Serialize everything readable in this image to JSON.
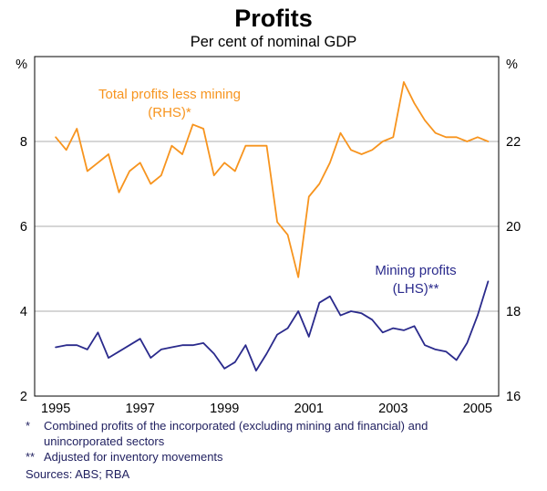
{
  "chart_data": {
    "type": "line",
    "title": "Profits",
    "subtitle": "Per cent of nominal GDP",
    "grid": "horizontal",
    "left_axis": {
      "unit": "%",
      "min": 2,
      "max": 10,
      "ticks": [
        2,
        4,
        6,
        8
      ]
    },
    "right_axis": {
      "unit": "%",
      "min": 16,
      "max": 24,
      "ticks": [
        16,
        18,
        20,
        22
      ]
    },
    "x_axis": {
      "min": 1994.5,
      "max": 2005.5,
      "tick_years": [
        1995,
        1997,
        1999,
        2001,
        2003,
        2005
      ]
    },
    "x": [
      1995,
      1995.25,
      1995.5,
      1995.75,
      1996,
      1996.25,
      1996.5,
      1996.75,
      1997,
      1997.25,
      1997.5,
      1997.75,
      1998,
      1998.25,
      1998.5,
      1998.75,
      1999,
      1999.25,
      1999.5,
      1999.75,
      2000,
      2000.25,
      2000.5,
      2000.75,
      2001,
      2001.25,
      2001.5,
      2001.75,
      2002,
      2002.25,
      2002.5,
      2002.75,
      2003,
      2003.25,
      2003.5,
      2003.75,
      2004,
      2004.25,
      2004.5,
      2004.75,
      2005,
      2005.25
    ],
    "series": [
      {
        "name": "Total profits less mining (RHS)",
        "axis": "right",
        "color": "#f7941e",
        "values": [
          22.1,
          21.8,
          22.3,
          21.3,
          21.5,
          21.7,
          20.8,
          21.3,
          21.5,
          21.0,
          21.2,
          21.9,
          21.7,
          22.4,
          22.3,
          21.2,
          21.5,
          21.3,
          21.9,
          21.9,
          21.9,
          20.1,
          19.8,
          18.8,
          20.7,
          21.0,
          21.5,
          22.2,
          21.8,
          21.7,
          21.8,
          22.0,
          22.1,
          23.4,
          22.9,
          22.5,
          22.2,
          22.1,
          22.1,
          22.0,
          22.1,
          22.0
        ]
      },
      {
        "name": "Mining profits (LHS)",
        "axis": "left",
        "color": "#2a2a8c",
        "values": [
          3.15,
          3.2,
          3.2,
          3.1,
          3.5,
          2.9,
          3.05,
          3.2,
          3.35,
          2.9,
          3.1,
          3.15,
          3.2,
          3.2,
          3.25,
          3.0,
          2.65,
          2.8,
          3.2,
          2.6,
          3.0,
          3.45,
          3.6,
          4.0,
          3.4,
          4.2,
          4.35,
          3.9,
          4.0,
          3.95,
          3.8,
          3.5,
          3.6,
          3.55,
          3.65,
          3.2,
          3.1,
          3.05,
          2.85,
          3.25,
          3.9,
          4.7
        ]
      }
    ],
    "annotations": [
      {
        "lines": [
          "Total profits less mining",
          "(RHS)*"
        ],
        "color": "#f7941e",
        "x": 186,
        "y": 52,
        "line_gap": 20
      },
      {
        "lines": [
          "Mining profits",
          "(LHS)**"
        ],
        "color": "#2a2a8c",
        "x": 456,
        "y": 245,
        "line_gap": 20
      }
    ],
    "footnotes": [
      {
        "marker": "*",
        "text": "Combined profits of the incorporated (excluding mining and financial) and unincorporated sectors"
      },
      {
        "marker": "**",
        "text": "Adjusted for inventory movements"
      }
    ],
    "sources": "Sources: ABS; RBA",
    "frame_color": "#000000",
    "gridline_color": "#adadad"
  }
}
